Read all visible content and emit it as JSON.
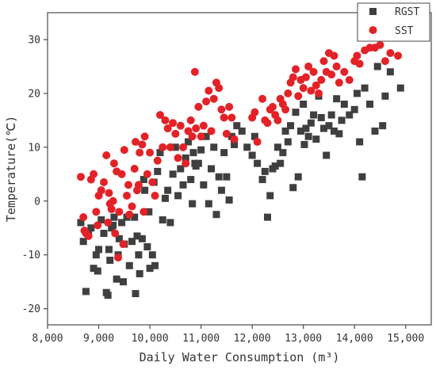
{
  "chart_data": {
    "type": "scatter",
    "xlabel": "Daily Water Consumption (m³)",
    "ylabel": "Temperature(℃)",
    "xlim": [
      8000,
      15500
    ],
    "ylim": [
      -23,
      35
    ],
    "xticks": [
      8000,
      9000,
      10000,
      11000,
      12000,
      13000,
      14000,
      15000
    ],
    "xtick_labels": [
      "8,000",
      "9,000",
      "10,000",
      "11,000",
      "12,000",
      "13,000",
      "14,000",
      "15,000"
    ],
    "yticks": [
      -20,
      -10,
      0,
      10,
      20,
      30
    ],
    "ytick_labels": [
      "-20",
      "-10",
      "0",
      "10",
      "20",
      "30"
    ],
    "grid": false,
    "legend_position": "top-right",
    "series": [
      {
        "name": "RGST",
        "marker": "square",
        "color": "#3f3f3f",
        "points": [
          [
            8650,
            -4
          ],
          [
            8700,
            -7.5
          ],
          [
            8750,
            -16.8
          ],
          [
            8800,
            -6
          ],
          [
            8850,
            -5
          ],
          [
            8900,
            -12.5
          ],
          [
            8950,
            -10
          ],
          [
            8980,
            -13
          ],
          [
            9000,
            -9
          ],
          [
            9050,
            -3.5
          ],
          [
            9100,
            -6
          ],
          [
            9150,
            -17
          ],
          [
            9180,
            -17.5
          ],
          [
            9200,
            -9
          ],
          [
            9220,
            -11
          ],
          [
            9250,
            -5
          ],
          [
            9280,
            -4.5
          ],
          [
            9300,
            -3
          ],
          [
            9350,
            -14.5
          ],
          [
            9380,
            -10
          ],
          [
            9400,
            -7
          ],
          [
            9450,
            -4
          ],
          [
            9480,
            -15
          ],
          [
            9500,
            -8
          ],
          [
            9550,
            -3
          ],
          [
            9600,
            -12
          ],
          [
            9650,
            -7.5
          ],
          [
            9700,
            -3
          ],
          [
            9720,
            -17.2
          ],
          [
            9750,
            -6.5
          ],
          [
            9780,
            -10
          ],
          [
            9800,
            -13.5
          ],
          [
            9850,
            -7
          ],
          [
            9880,
            4
          ],
          [
            9900,
            2
          ],
          [
            9950,
            -8.5
          ],
          [
            9980,
            -2
          ],
          [
            10000,
            -12.5
          ],
          [
            10050,
            -10
          ],
          [
            10080,
            3.5
          ],
          [
            10100,
            -12
          ],
          [
            10150,
            5.5
          ],
          [
            10200,
            9
          ],
          [
            10250,
            -3.5
          ],
          [
            10300,
            0.5
          ],
          [
            10350,
            2
          ],
          [
            10400,
            -4
          ],
          [
            10450,
            5
          ],
          [
            10500,
            10
          ],
          [
            10550,
            1
          ],
          [
            10600,
            6
          ],
          [
            10650,
            3
          ],
          [
            10700,
            8
          ],
          [
            10750,
            11
          ],
          [
            10800,
            4
          ],
          [
            10830,
            -0.5
          ],
          [
            10850,
            9
          ],
          [
            10880,
            7
          ],
          [
            10900,
            6.5
          ],
          [
            10950,
            7
          ],
          [
            11000,
            9.5
          ],
          [
            11050,
            3
          ],
          [
            11100,
            12
          ],
          [
            11150,
            -0.5
          ],
          [
            11200,
            6
          ],
          [
            11250,
            10
          ],
          [
            11300,
            -2.5
          ],
          [
            11350,
            4.5
          ],
          [
            11400,
            2
          ],
          [
            11450,
            9
          ],
          [
            11500,
            4.5
          ],
          [
            11550,
            0.2
          ],
          [
            11600,
            12
          ],
          [
            11650,
            10.5
          ],
          [
            11700,
            14
          ],
          [
            11800,
            13
          ],
          [
            11900,
            10
          ],
          [
            12000,
            8.5
          ],
          [
            12050,
            12
          ],
          [
            12100,
            7
          ],
          [
            12200,
            4
          ],
          [
            12250,
            5.5
          ],
          [
            12300,
            -3
          ],
          [
            12350,
            1
          ],
          [
            12400,
            6
          ],
          [
            12450,
            6.5
          ],
          [
            12500,
            10
          ],
          [
            12550,
            7
          ],
          [
            12600,
            9
          ],
          [
            12650,
            13
          ],
          [
            12700,
            11
          ],
          [
            12750,
            14
          ],
          [
            12800,
            2.5
          ],
          [
            12850,
            16.5
          ],
          [
            12900,
            4.5
          ],
          [
            12950,
            13
          ],
          [
            13000,
            18
          ],
          [
            13020,
            10.5
          ],
          [
            13050,
            13.5
          ],
          [
            13100,
            12
          ],
          [
            13150,
            14.5
          ],
          [
            13200,
            16
          ],
          [
            13250,
            11.5
          ],
          [
            13300,
            19.5
          ],
          [
            13350,
            15.5
          ],
          [
            13400,
            13.5
          ],
          [
            13450,
            8.5
          ],
          [
            13500,
            14
          ],
          [
            13550,
            16
          ],
          [
            13600,
            13
          ],
          [
            13650,
            19
          ],
          [
            13700,
            12.5
          ],
          [
            13750,
            15
          ],
          [
            13800,
            18
          ],
          [
            13900,
            16
          ],
          [
            14000,
            17
          ],
          [
            14050,
            20
          ],
          [
            14100,
            11
          ],
          [
            14150,
            4.5
          ],
          [
            14200,
            21
          ],
          [
            14300,
            18
          ],
          [
            14400,
            13
          ],
          [
            14450,
            25
          ],
          [
            14550,
            14
          ],
          [
            14600,
            19.5
          ],
          [
            14700,
            24
          ],
          [
            14900,
            21
          ]
        ]
      },
      {
        "name": "SST",
        "marker": "circle",
        "color": "#e32228",
        "points": [
          [
            8650,
            4.5
          ],
          [
            8700,
            -3
          ],
          [
            8720,
            -5.5
          ],
          [
            8750,
            -6
          ],
          [
            8800,
            -6.5
          ],
          [
            8850,
            4
          ],
          [
            8900,
            5
          ],
          [
            8950,
            -2
          ],
          [
            8980,
            -4.5
          ],
          [
            9000,
            1
          ],
          [
            9050,
            2
          ],
          [
            9100,
            3.5
          ],
          [
            9150,
            8.5
          ],
          [
            9180,
            -4
          ],
          [
            9200,
            1.5
          ],
          [
            9220,
            -0.5
          ],
          [
            9250,
            -1.5
          ],
          [
            9280,
            0
          ],
          [
            9300,
            7
          ],
          [
            9320,
            -6
          ],
          [
            9350,
            5.5
          ],
          [
            9380,
            -10.5
          ],
          [
            9400,
            -2
          ],
          [
            9450,
            5
          ],
          [
            9480,
            -8
          ],
          [
            9500,
            9.5
          ],
          [
            9550,
            1
          ],
          [
            9580,
            3
          ],
          [
            9600,
            -2.5
          ],
          [
            9650,
            -1
          ],
          [
            9700,
            6
          ],
          [
            9720,
            11
          ],
          [
            9750,
            2
          ],
          [
            9780,
            3
          ],
          [
            9800,
            9
          ],
          [
            9850,
            10.5
          ],
          [
            9880,
            -2
          ],
          [
            9900,
            12
          ],
          [
            9950,
            5
          ],
          [
            10000,
            9
          ],
          [
            10050,
            3.5
          ],
          [
            10100,
            1
          ],
          [
            10150,
            7.5
          ],
          [
            10200,
            16
          ],
          [
            10250,
            10
          ],
          [
            10300,
            15
          ],
          [
            10350,
            13.5
          ],
          [
            10400,
            10
          ],
          [
            10450,
            14.5
          ],
          [
            10500,
            12.5
          ],
          [
            10550,
            8
          ],
          [
            10600,
            14
          ],
          [
            10650,
            10
          ],
          [
            10700,
            7
          ],
          [
            10750,
            13
          ],
          [
            10800,
            15
          ],
          [
            10830,
            12
          ],
          [
            10880,
            24
          ],
          [
            10900,
            13.5
          ],
          [
            10950,
            17.5
          ],
          [
            11000,
            12
          ],
          [
            11050,
            14
          ],
          [
            11100,
            18.5
          ],
          [
            11150,
            20.5
          ],
          [
            11200,
            13
          ],
          [
            11250,
            19
          ],
          [
            11300,
            22
          ],
          [
            11350,
            21
          ],
          [
            11400,
            17
          ],
          [
            11450,
            15.5
          ],
          [
            11500,
            12.5
          ],
          [
            11550,
            17.5
          ],
          [
            11600,
            15.5
          ],
          [
            11650,
            11.5
          ],
          [
            12000,
            15.5
          ],
          [
            12050,
            16.5
          ],
          [
            12100,
            11
          ],
          [
            12200,
            19
          ],
          [
            12250,
            15
          ],
          [
            12300,
            14.5
          ],
          [
            12350,
            17
          ],
          [
            12400,
            17.5
          ],
          [
            12450,
            16
          ],
          [
            12500,
            15
          ],
          [
            12550,
            19
          ],
          [
            12600,
            18
          ],
          [
            12650,
            17
          ],
          [
            12700,
            20
          ],
          [
            12750,
            22
          ],
          [
            12800,
            23
          ],
          [
            12850,
            24.5
          ],
          [
            12900,
            19.5
          ],
          [
            12950,
            22.5
          ],
          [
            13000,
            21
          ],
          [
            13050,
            23
          ],
          [
            13100,
            25
          ],
          [
            13150,
            20.5
          ],
          [
            13200,
            24
          ],
          [
            13250,
            21.5
          ],
          [
            13300,
            20
          ],
          [
            13350,
            22.5
          ],
          [
            13400,
            26
          ],
          [
            13450,
            24
          ],
          [
            13500,
            27.5
          ],
          [
            13550,
            23.5
          ],
          [
            13600,
            27
          ],
          [
            13650,
            25
          ],
          [
            13700,
            22
          ],
          [
            13800,
            24
          ],
          [
            13900,
            22.5
          ],
          [
            14000,
            26
          ],
          [
            14050,
            27
          ],
          [
            14100,
            25.5
          ],
          [
            14200,
            28
          ],
          [
            14300,
            28.5
          ],
          [
            14400,
            28.5
          ],
          [
            14500,
            29
          ],
          [
            14600,
            26
          ],
          [
            14700,
            27.5
          ],
          [
            14850,
            27
          ]
        ]
      }
    ]
  }
}
